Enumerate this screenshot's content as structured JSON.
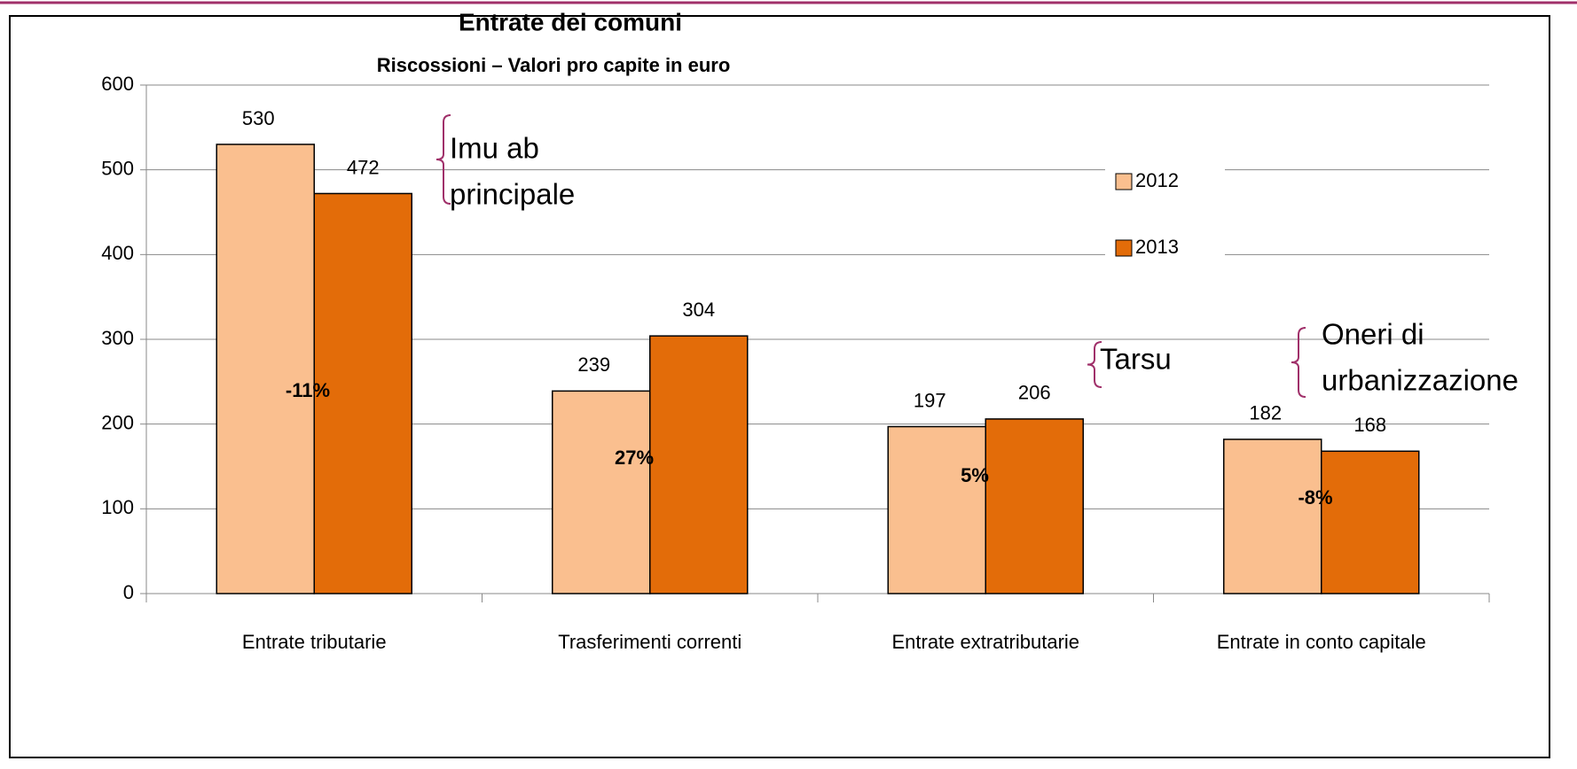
{
  "chart_data": {
    "type": "bar",
    "title": "Entrate dei comuni",
    "subtitle": "Riscossioni – Valori pro capite in euro",
    "categories": [
      "Entrate tributarie",
      "Trasferimenti correnti",
      "Entrate extratributarie",
      "Entrate in conto capitale"
    ],
    "series": [
      {
        "name": "2012",
        "color": "#fabf8f",
        "values": [
          530,
          239,
          197,
          182
        ]
      },
      {
        "name": "2013",
        "color": "#e36c09",
        "values": [
          472,
          304,
          206,
          168
        ]
      }
    ],
    "ylim": [
      0,
      600
    ],
    "yticks": [
      0,
      100,
      200,
      300,
      400,
      500,
      600
    ],
    "grid": true,
    "legend": "right",
    "annotations": [
      "-11%",
      "27%",
      "5%",
      "-8%"
    ],
    "notes": [
      [
        "Imu ab",
        "principale"
      ],
      [
        "Tarsu"
      ],
      [
        "Oneri di",
        "urbanizzazione"
      ]
    ]
  }
}
